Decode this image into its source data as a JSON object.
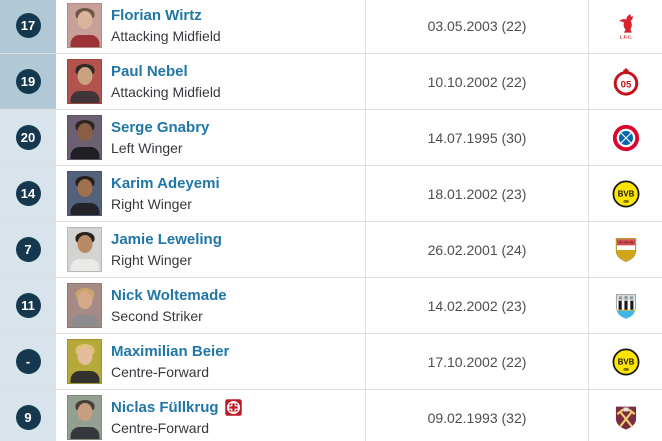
{
  "table": {
    "rows": [
      {
        "number": "17",
        "name": "Florian Wirtz",
        "position": "Attacking Midfield",
        "dob_age": "03.05.2003 (22)",
        "section": "midfield",
        "club_icon": "liverpool",
        "injury": false,
        "photo": {
          "bg": "#c8a09a",
          "shirt": "#9c3138",
          "skin": "#dcb49c",
          "hair": "#6d5743"
        }
      },
      {
        "number": "19",
        "name": "Paul Nebel",
        "position": "Attacking Midfield",
        "dob_age": "10.10.2002 (22)",
        "section": "midfield",
        "club_icon": "mainz-05",
        "injury": false,
        "photo": {
          "bg": "#b4524e",
          "shirt": "#42353a",
          "skin": "#caa27f",
          "hair": "#2e2a28"
        }
      },
      {
        "number": "20",
        "name": "Serge Gnabry",
        "position": "Left Winger",
        "dob_age": "14.07.1995 (30)",
        "section": "attack",
        "club_icon": "bayern-munich",
        "injury": false,
        "photo": {
          "bg": "#6c5f72",
          "shirt": "#1f1e23",
          "skin": "#8a5f46",
          "hair": "#2b2420"
        }
      },
      {
        "number": "14",
        "name": "Karim Adeyemi",
        "position": "Right Winger",
        "dob_age": "18.01.2002 (23)",
        "section": "attack",
        "club_icon": "borussia-dortmund",
        "injury": false,
        "photo": {
          "bg": "#54617a",
          "shirt": "#23242a",
          "skin": "#a0714f",
          "hair": "#241f1c"
        }
      },
      {
        "number": "7",
        "name": "Jamie Leweling",
        "position": "Right Winger",
        "dob_age": "26.02.2001 (24)",
        "section": "attack",
        "club_icon": "vfb-stuttgart",
        "injury": false,
        "photo": {
          "bg": "#d3d3d1",
          "shirt": "#e9e9e7",
          "skin": "#b98a64",
          "hair": "#28211d"
        }
      },
      {
        "number": "11",
        "name": "Nick Woltemade",
        "position": "Second Striker",
        "dob_age": "14.02.2002 (23)",
        "section": "attack",
        "club_icon": "newcastle-united",
        "injury": false,
        "photo": {
          "bg": "#a58a85",
          "shirt": "#8c8c8c",
          "skin": "#d4a988",
          "hair": "#c9a368"
        }
      },
      {
        "number": "-",
        "name": "Maximilian Beier",
        "position": "Centre-Forward",
        "dob_age": "17.10.2002 (22)",
        "section": "attack",
        "club_icon": "borussia-dortmund",
        "injury": false,
        "photo": {
          "bg": "#b6a93c",
          "shirt": "#33322f",
          "skin": "#e3bd9e",
          "hair": "#dfc277"
        }
      },
      {
        "number": "9",
        "name": "Niclas Füllkrug",
        "position": "Centre-Forward",
        "dob_age": "09.02.1993 (32)",
        "section": "attack",
        "club_icon": "west-ham",
        "injury": true,
        "photo": {
          "bg": "#93a090",
          "shirt": "#35383c",
          "skin": "#c89e80",
          "hair": "#4a3f37"
        }
      }
    ]
  },
  "icons": {
    "injury": "red-cross-injury-icon",
    "clubs": [
      "liverpool-logo",
      "mainz-05-logo",
      "bayern-munich-logo",
      "borussia-dortmund-logo",
      "vfb-stuttgart-logo",
      "newcastle-united-logo",
      "west-ham-logo"
    ]
  },
  "colors": {
    "link_blue": "#2077a7",
    "section_midfield_bg": "#b1c9d7",
    "section_attack_bg": "#d8e3eb",
    "number_circle_bg": "#16384e",
    "row_border": "#e0e0e0",
    "position_text": "#36393d",
    "date_text": "#4e4e4e",
    "injury_red": "#ba1b24"
  }
}
